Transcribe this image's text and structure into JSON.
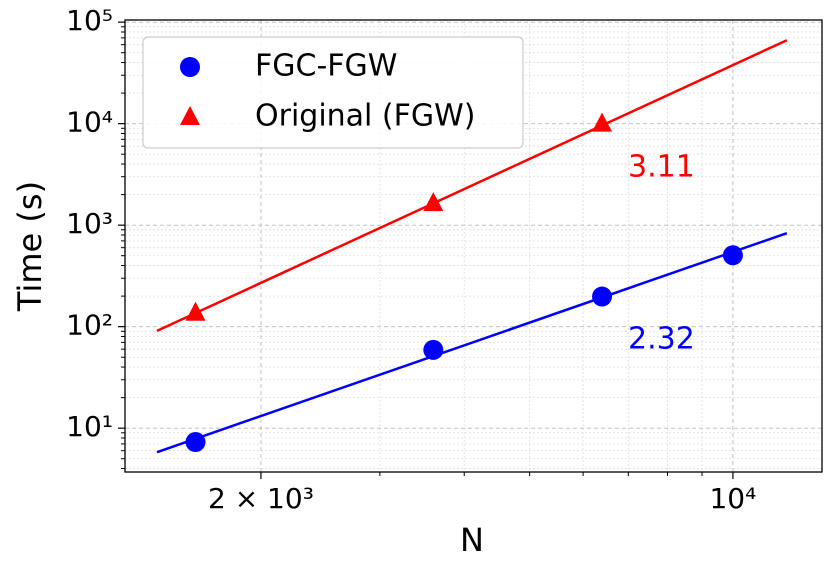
{
  "chart_data": {
    "type": "scatter",
    "xlabel": "N",
    "ylabel": "Time (s)",
    "log_x": true,
    "log_y": true,
    "grid": true,
    "legend": "upper left",
    "xlim": [
      1258,
      13550
    ],
    "ylim": [
      3.7,
      105000
    ],
    "xticks": [
      {
        "value": 2000,
        "label": "2 × 10³"
      },
      {
        "value": 10000,
        "label": "10⁴"
      }
    ],
    "x_minor_ticks": [
      3000,
      4000,
      5000,
      6000,
      7000,
      8000,
      9000
    ],
    "yticks": [
      {
        "value": 10,
        "label": "10¹"
      },
      {
        "value": 100,
        "label": "10²"
      },
      {
        "value": 1000,
        "label": "10³"
      },
      {
        "value": 10000,
        "label": "10⁴"
      },
      {
        "value": 100000,
        "label": "10⁵"
      }
    ],
    "y_minor_ticks": [
      4,
      5,
      6,
      7,
      8,
      9,
      20,
      30,
      40,
      50,
      60,
      70,
      80,
      90,
      200,
      300,
      400,
      500,
      600,
      700,
      800,
      900,
      2000,
      3000,
      4000,
      5000,
      6000,
      7000,
      8000,
      9000,
      20000,
      30000,
      40000,
      50000,
      60000,
      70000,
      80000,
      90000
    ],
    "series": [
      {
        "name": "FGC-FGW",
        "color": "#0000ff",
        "marker": "circle",
        "x": [
          1600,
          3600,
          6400,
          10000
        ],
        "values": [
          7.3,
          59,
          198,
          505
        ],
        "fit_x": [
          1403,
          12020
        ],
        "fit_values": [
          5.8,
          834
        ]
      },
      {
        "name": "Original (FGW)",
        "color": "#ff0000",
        "marker": "triangle",
        "x": [
          1600,
          3600,
          6400
        ],
        "values": [
          137,
          1650,
          10000
        ],
        "fit_x": [
          1403,
          12020
        ],
        "fit_values": [
          91,
          66400
        ]
      }
    ],
    "annotations": [
      {
        "text": "3.11",
        "color": "#ff0000"
      },
      {
        "text": "2.32",
        "color": "#0000ff"
      }
    ]
  }
}
